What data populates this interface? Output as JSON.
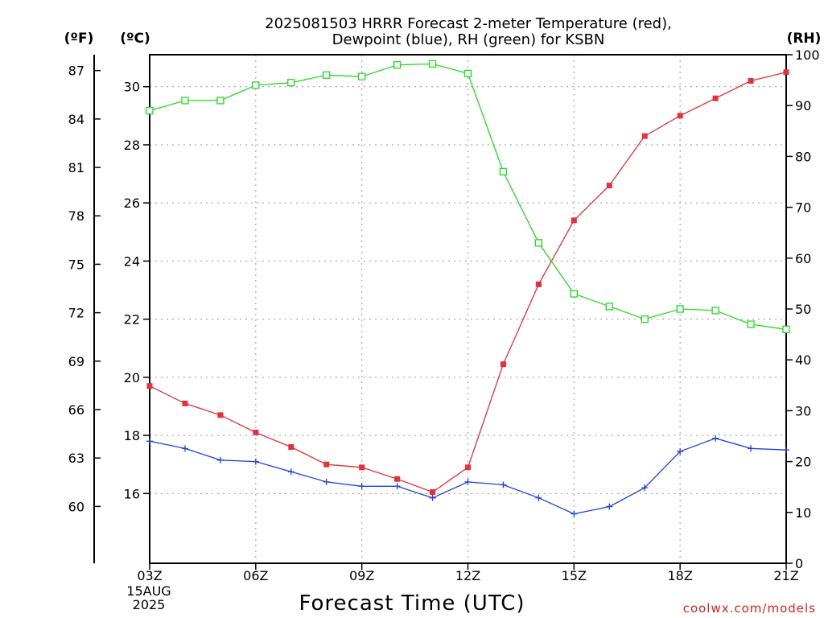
{
  "chart_data": {
    "type": "line",
    "title": [
      "2025081503 HRRR Forecast 2-meter Temperature (red),",
      "Dewpoint (blue), RH (green) for KSBN"
    ],
    "xlabel": "Forecast Time (UTC)",
    "date_label": [
      "15AUG",
      "2025"
    ],
    "credit": "coolwx.com/models",
    "units": {
      "fahrenheit": "(ºF)",
      "celsius": "(ºC)",
      "rh": "(RH)"
    },
    "x": [
      "03Z",
      "04Z",
      "05Z",
      "06Z",
      "07Z",
      "08Z",
      "09Z",
      "10Z",
      "11Z",
      "12Z",
      "13Z",
      "14Z",
      "15Z",
      "16Z",
      "17Z",
      "18Z",
      "19Z",
      "20Z",
      "21Z"
    ],
    "x_tick_labels": [
      "03Z",
      "06Z",
      "09Z",
      "12Z",
      "15Z",
      "18Z",
      "21Z"
    ],
    "celsius_axis": {
      "range": [
        13.6,
        31.1
      ],
      "ticks": [
        16,
        18,
        20,
        22,
        24,
        26,
        28,
        30
      ]
    },
    "fahrenheit_axis": {
      "ticks": [
        60,
        63,
        66,
        69,
        72,
        75,
        78,
        81,
        84,
        87
      ]
    },
    "rh_axis": {
      "range": [
        0,
        100
      ],
      "ticks": [
        0,
        10,
        20,
        30,
        40,
        50,
        60,
        70,
        80,
        90,
        100
      ]
    },
    "grid": true,
    "series": [
      {
        "key": "temperature",
        "axis": "celsius",
        "color": "#e8303a",
        "marker": "filled-square",
        "values": [
          19.7,
          19.1,
          18.7,
          18.1,
          17.6,
          17.0,
          16.9,
          16.5,
          16.05,
          16.9,
          20.45,
          23.2,
          25.4,
          26.6,
          28.3,
          29.0,
          29.6,
          30.2,
          30.5
        ]
      },
      {
        "key": "dewpoint",
        "axis": "celsius",
        "color": "#2040e0",
        "marker": "plus",
        "values": [
          17.8,
          17.55,
          17.15,
          17.1,
          16.75,
          16.4,
          16.25,
          16.25,
          15.85,
          16.4,
          16.3,
          15.85,
          15.3,
          15.55,
          16.2,
          17.45,
          17.9,
          17.55,
          17.5
        ]
      },
      {
        "key": "rh",
        "axis": "rh",
        "color": "#22dd22",
        "marker": "open-square",
        "values": [
          89,
          91,
          91,
          94,
          94.5,
          96,
          95.7,
          98,
          98.2,
          96.3,
          77,
          63,
          53,
          50.5,
          48,
          50,
          49.7,
          47,
          46
        ]
      }
    ]
  }
}
